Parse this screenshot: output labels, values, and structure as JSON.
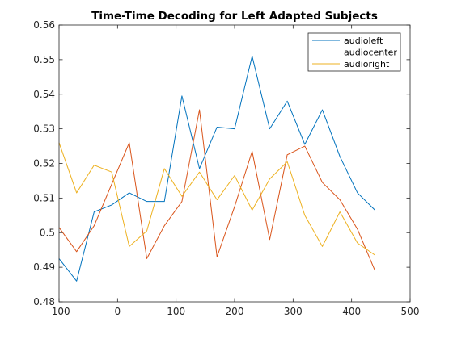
{
  "chart_data": {
    "type": "line",
    "title": "Time-Time Decoding for Left Adapted Subjects",
    "xlabel": "",
    "ylabel": "",
    "xlim": [
      -100,
      500
    ],
    "ylim": [
      0.48,
      0.56
    ],
    "xticks": [
      -100,
      0,
      100,
      200,
      300,
      400,
      500
    ],
    "yticks": [
      0.48,
      0.49,
      0.5,
      0.51,
      0.52,
      0.53,
      0.54,
      0.55,
      0.56
    ],
    "xtick_labels": [
      "-100",
      "0",
      "100",
      "200",
      "300",
      "400",
      "500"
    ],
    "ytick_labels": [
      "0.48",
      "0.49",
      "0.5",
      "0.51",
      "0.52",
      "0.53",
      "0.54",
      "0.55",
      "0.56"
    ],
    "grid": false,
    "legend_position": "top-right",
    "x": [
      -100,
      -70,
      -40,
      -10,
      20,
      50,
      80,
      110,
      140,
      170,
      200,
      230,
      260,
      290,
      320,
      350,
      380,
      410,
      440
    ],
    "series": [
      {
        "name": "audioleft",
        "color": "#0072BD",
        "values": [
          0.4925,
          0.486,
          0.506,
          0.508,
          0.5115,
          0.509,
          0.509,
          0.5395,
          0.5185,
          0.5305,
          0.53,
          0.551,
          0.53,
          0.538,
          0.5255,
          0.5355,
          0.522,
          0.5115,
          0.5065
        ]
      },
      {
        "name": "audiocenter",
        "color": "#D95319",
        "values": [
          0.5015,
          0.4945,
          0.502,
          0.514,
          0.526,
          0.4925,
          0.502,
          0.509,
          0.5355,
          0.493,
          0.5075,
          0.5235,
          0.498,
          0.5225,
          0.525,
          0.5145,
          0.5095,
          0.501,
          0.489
        ]
      },
      {
        "name": "audioright",
        "color": "#EDB120",
        "values": [
          0.526,
          0.5115,
          0.5195,
          0.5175,
          0.496,
          0.5005,
          0.5185,
          0.5105,
          0.5175,
          0.5095,
          0.5165,
          0.5065,
          0.5155,
          0.5205,
          0.505,
          0.496,
          0.506,
          0.497,
          0.4935
        ]
      }
    ]
  }
}
